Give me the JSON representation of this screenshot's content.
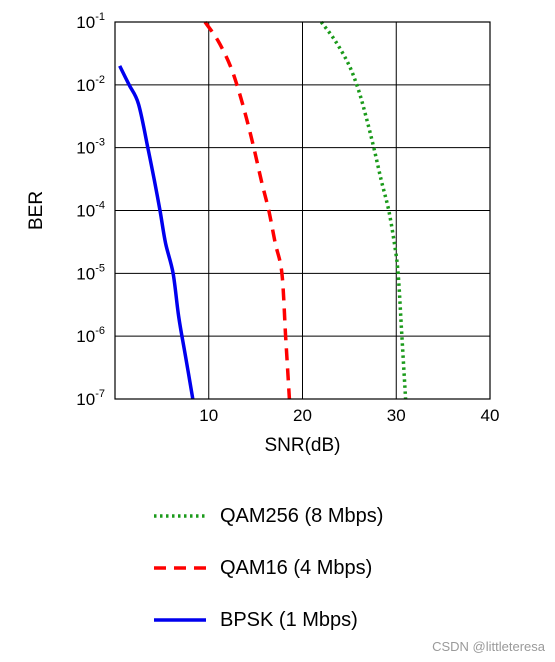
{
  "chart_data": {
    "type": "line",
    "xlabel": "SNR(dB)",
    "ylabel": "BER",
    "xlim": [
      0,
      40
    ],
    "ylim": [
      1e-07,
      0.1
    ],
    "y_scale": "log",
    "grid": true,
    "x_ticks": [
      {
        "value": 10,
        "label": "10"
      },
      {
        "value": 20,
        "label": "20"
      },
      {
        "value": 30,
        "label": "30"
      },
      {
        "value": 40,
        "label": "40"
      }
    ],
    "y_ticks": [
      {
        "value": 0.1,
        "base": "10",
        "exp": "-1"
      },
      {
        "value": 0.01,
        "base": "10",
        "exp": "-2"
      },
      {
        "value": 0.001,
        "base": "10",
        "exp": "-3"
      },
      {
        "value": 0.0001,
        "base": "10",
        "exp": "-4"
      },
      {
        "value": 1e-05,
        "base": "10",
        "exp": "-5"
      },
      {
        "value": 1e-06,
        "base": "10",
        "exp": "-6"
      },
      {
        "value": 1e-07,
        "base": "10",
        "exp": "-7"
      }
    ],
    "legend_position": "bottom",
    "series": [
      {
        "name": "QAM256 (8 Mbps)",
        "style": "dotted",
        "color": "#1a9a1a",
        "x": [
          22,
          23.5,
          25,
          26,
          26.8,
          27.6,
          28.4,
          29.2,
          29.8,
          30.2,
          30.6,
          31
        ],
        "y": [
          0.1,
          0.05,
          0.02,
          0.008,
          0.003,
          0.001,
          0.0003,
          0.0001,
          3e-05,
          1e-05,
          1e-06,
          1e-07
        ]
      },
      {
        "name": "QAM16 (4 Mbps)",
        "style": "dashed",
        "color": "#ff0000",
        "x": [
          9.6,
          11,
          12.3,
          13.2,
          14,
          14.8,
          15.6,
          16.4,
          17.1,
          17.8,
          18.2,
          18.6
        ],
        "y": [
          0.1,
          0.05,
          0.02,
          0.008,
          0.003,
          0.001,
          0.0003,
          0.0001,
          3e-05,
          1e-05,
          1e-06,
          1e-07
        ]
      },
      {
        "name": "BPSK (1 Mbps)",
        "style": "solid",
        "color": "#0000ee",
        "x": [
          0.5,
          1.5,
          2.5,
          3.5,
          4.2,
          4.8,
          5.4,
          6.2,
          6.8,
          7.5,
          8.3
        ],
        "y": [
          0.02,
          0.01,
          0.005,
          0.001,
          0.0003,
          0.0001,
          3e-05,
          1e-05,
          2e-06,
          5e-07,
          1e-07
        ]
      }
    ]
  },
  "legend": [
    {
      "label": "QAM256 (8 Mbps)",
      "style": "dotted",
      "color": "#1a9a1a"
    },
    {
      "label": "QAM16 (4 Mbps)",
      "style": "dashed",
      "color": "#ff0000"
    },
    {
      "label": "BPSK (1 Mbps)",
      "style": "solid",
      "color": "#0000ee"
    }
  ],
  "watermark": "CSDN @littleteresa"
}
